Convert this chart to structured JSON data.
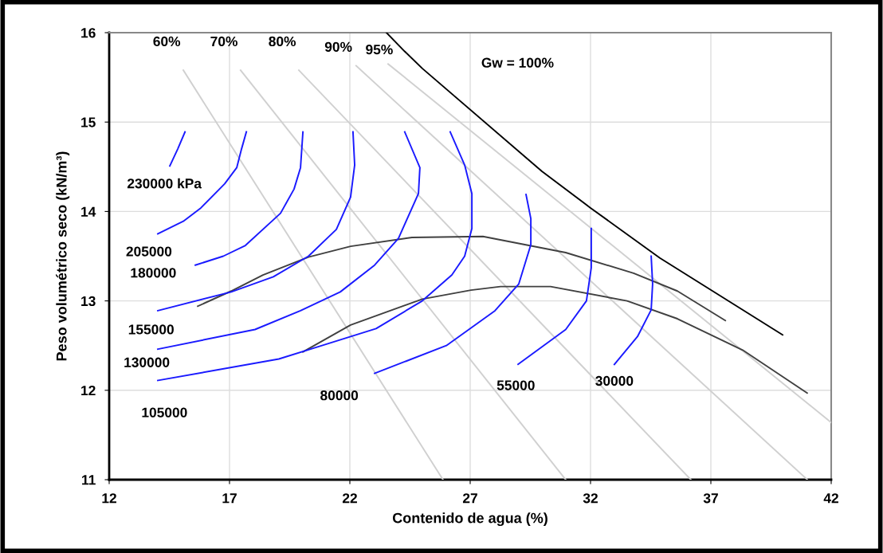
{
  "chart_data": {
    "type": "line",
    "xlabel": "Contenido de agua (%)",
    "ylabel": "Peso volumétrico seco (kN/m³)",
    "xlim": [
      12,
      42
    ],
    "ylim": [
      11,
      16
    ],
    "xticks": [
      12,
      17,
      22,
      27,
      32,
      37,
      42
    ],
    "yticks": [
      11,
      12,
      13,
      14,
      15,
      16
    ],
    "grid": true,
    "marker": "none",
    "line_style": "solid",
    "series": [
      {
        "name": "60%",
        "color": "#d0d0d0",
        "x": [
          15.08,
          25.87
        ],
        "values": [
          15.58,
          11.0
        ]
      },
      {
        "name": "70%",
        "color": "#d0d0d0",
        "x": [
          17.46,
          30.97
        ],
        "values": [
          15.58,
          11.0
        ]
      },
      {
        "name": "80%",
        "color": "#d0d0d0",
        "x": [
          19.88,
          36.17
        ],
        "values": [
          15.58,
          11.0
        ]
      },
      {
        "name": "90%",
        "color": "#d0d0d0",
        "x": [
          22.26,
          41.01
        ],
        "values": [
          15.63,
          11.0
        ]
      },
      {
        "name": "95%",
        "color": "#d0d0d0",
        "x": [
          23.59,
          42.0
        ],
        "values": [
          15.65,
          11.64
        ]
      },
      {
        "name": "Gw = 100%",
        "color": "#000000",
        "x": [
          23.52,
          24.28,
          25.01,
          29.98,
          32.0,
          34.88,
          39.98
        ],
        "values": [
          16.0,
          15.79,
          15.6,
          14.45,
          14.04,
          13.48,
          12.62
        ]
      },
      {
        "color": "#404040",
        "x": [
          15.68,
          17.07,
          18.39,
          20.28,
          22.03,
          24.58,
          27.53,
          30.97,
          33.79,
          35.61,
          37.6
        ],
        "values": [
          12.94,
          13.11,
          13.29,
          13.49,
          13.61,
          13.71,
          13.72,
          13.54,
          13.31,
          13.11,
          12.78
        ]
      },
      {
        "color": "#404040",
        "x": [
          20.05,
          22.03,
          25.01,
          27.03,
          28.26,
          30.34,
          33.52,
          35.61,
          38.32,
          41.0
        ],
        "values": [
          12.43,
          12.73,
          13.02,
          13.12,
          13.16,
          13.16,
          13.0,
          12.8,
          12.45,
          11.97
        ]
      },
      {
        "name": "230000 kPa",
        "color": "#1a1aff",
        "x": [
          15.15,
          14.85,
          14.52
        ],
        "values": [
          14.89,
          14.7,
          14.51
        ]
      },
      {
        "name": "205000",
        "color": "#1a1aff",
        "x": [
          17.7,
          17.5,
          17.3,
          16.8,
          15.81,
          15.08,
          14.02
        ],
        "values": [
          14.89,
          14.7,
          14.49,
          14.31,
          14.04,
          13.89,
          13.75
        ]
      },
      {
        "name": "180000",
        "color": "#1a1aff",
        "x": [
          20.05,
          19.95,
          19.68,
          19.12,
          17.66,
          16.74,
          15.58
        ],
        "values": [
          14.89,
          14.49,
          14.25,
          13.98,
          13.62,
          13.5,
          13.4
        ]
      },
      {
        "name": "155000",
        "color": "#1a1aff",
        "x": [
          22.13,
          22.2,
          22.03,
          21.44,
          20.28,
          18.82,
          17.07,
          14.02
        ],
        "values": [
          14.89,
          14.52,
          14.16,
          13.8,
          13.5,
          13.27,
          13.1,
          12.89
        ]
      },
      {
        "name": "130000",
        "color": "#1a1aff",
        "x": [
          24.28,
          24.91,
          24.85,
          24.02,
          23.03,
          21.6,
          19.95,
          18.06,
          14.02
        ],
        "values": [
          14.89,
          14.49,
          14.2,
          13.7,
          13.4,
          13.1,
          12.89,
          12.68,
          12.46
        ]
      },
      {
        "name": "105000",
        "color": "#1a1aff",
        "x": [
          26.17,
          26.77,
          27.07,
          27.07,
          26.77,
          26.24,
          25.01,
          23.09,
          20.71,
          19.05,
          14.02
        ],
        "values": [
          14.89,
          14.52,
          14.2,
          13.81,
          13.5,
          13.29,
          13.0,
          12.69,
          12.49,
          12.35,
          12.11
        ]
      },
      {
        "name": "80000",
        "color": "#1a1aff",
        "x": [
          29.32,
          29.52,
          29.52,
          29.02,
          28.03,
          26.01,
          23.03
        ],
        "values": [
          14.19,
          13.92,
          13.63,
          13.19,
          12.89,
          12.5,
          12.19
        ]
      },
      {
        "name": "55000",
        "color": "#1a1aff",
        "x": [
          32.03,
          32.03,
          31.83,
          30.97,
          28.99
        ],
        "values": [
          13.81,
          13.37,
          13.0,
          12.68,
          12.29
        ]
      },
      {
        "name": "30000",
        "color": "#1a1aff",
        "x": [
          34.52,
          34.58,
          34.52,
          33.95,
          32.99
        ],
        "values": [
          13.5,
          13.19,
          12.9,
          12.6,
          12.29
        ]
      }
    ]
  }
}
